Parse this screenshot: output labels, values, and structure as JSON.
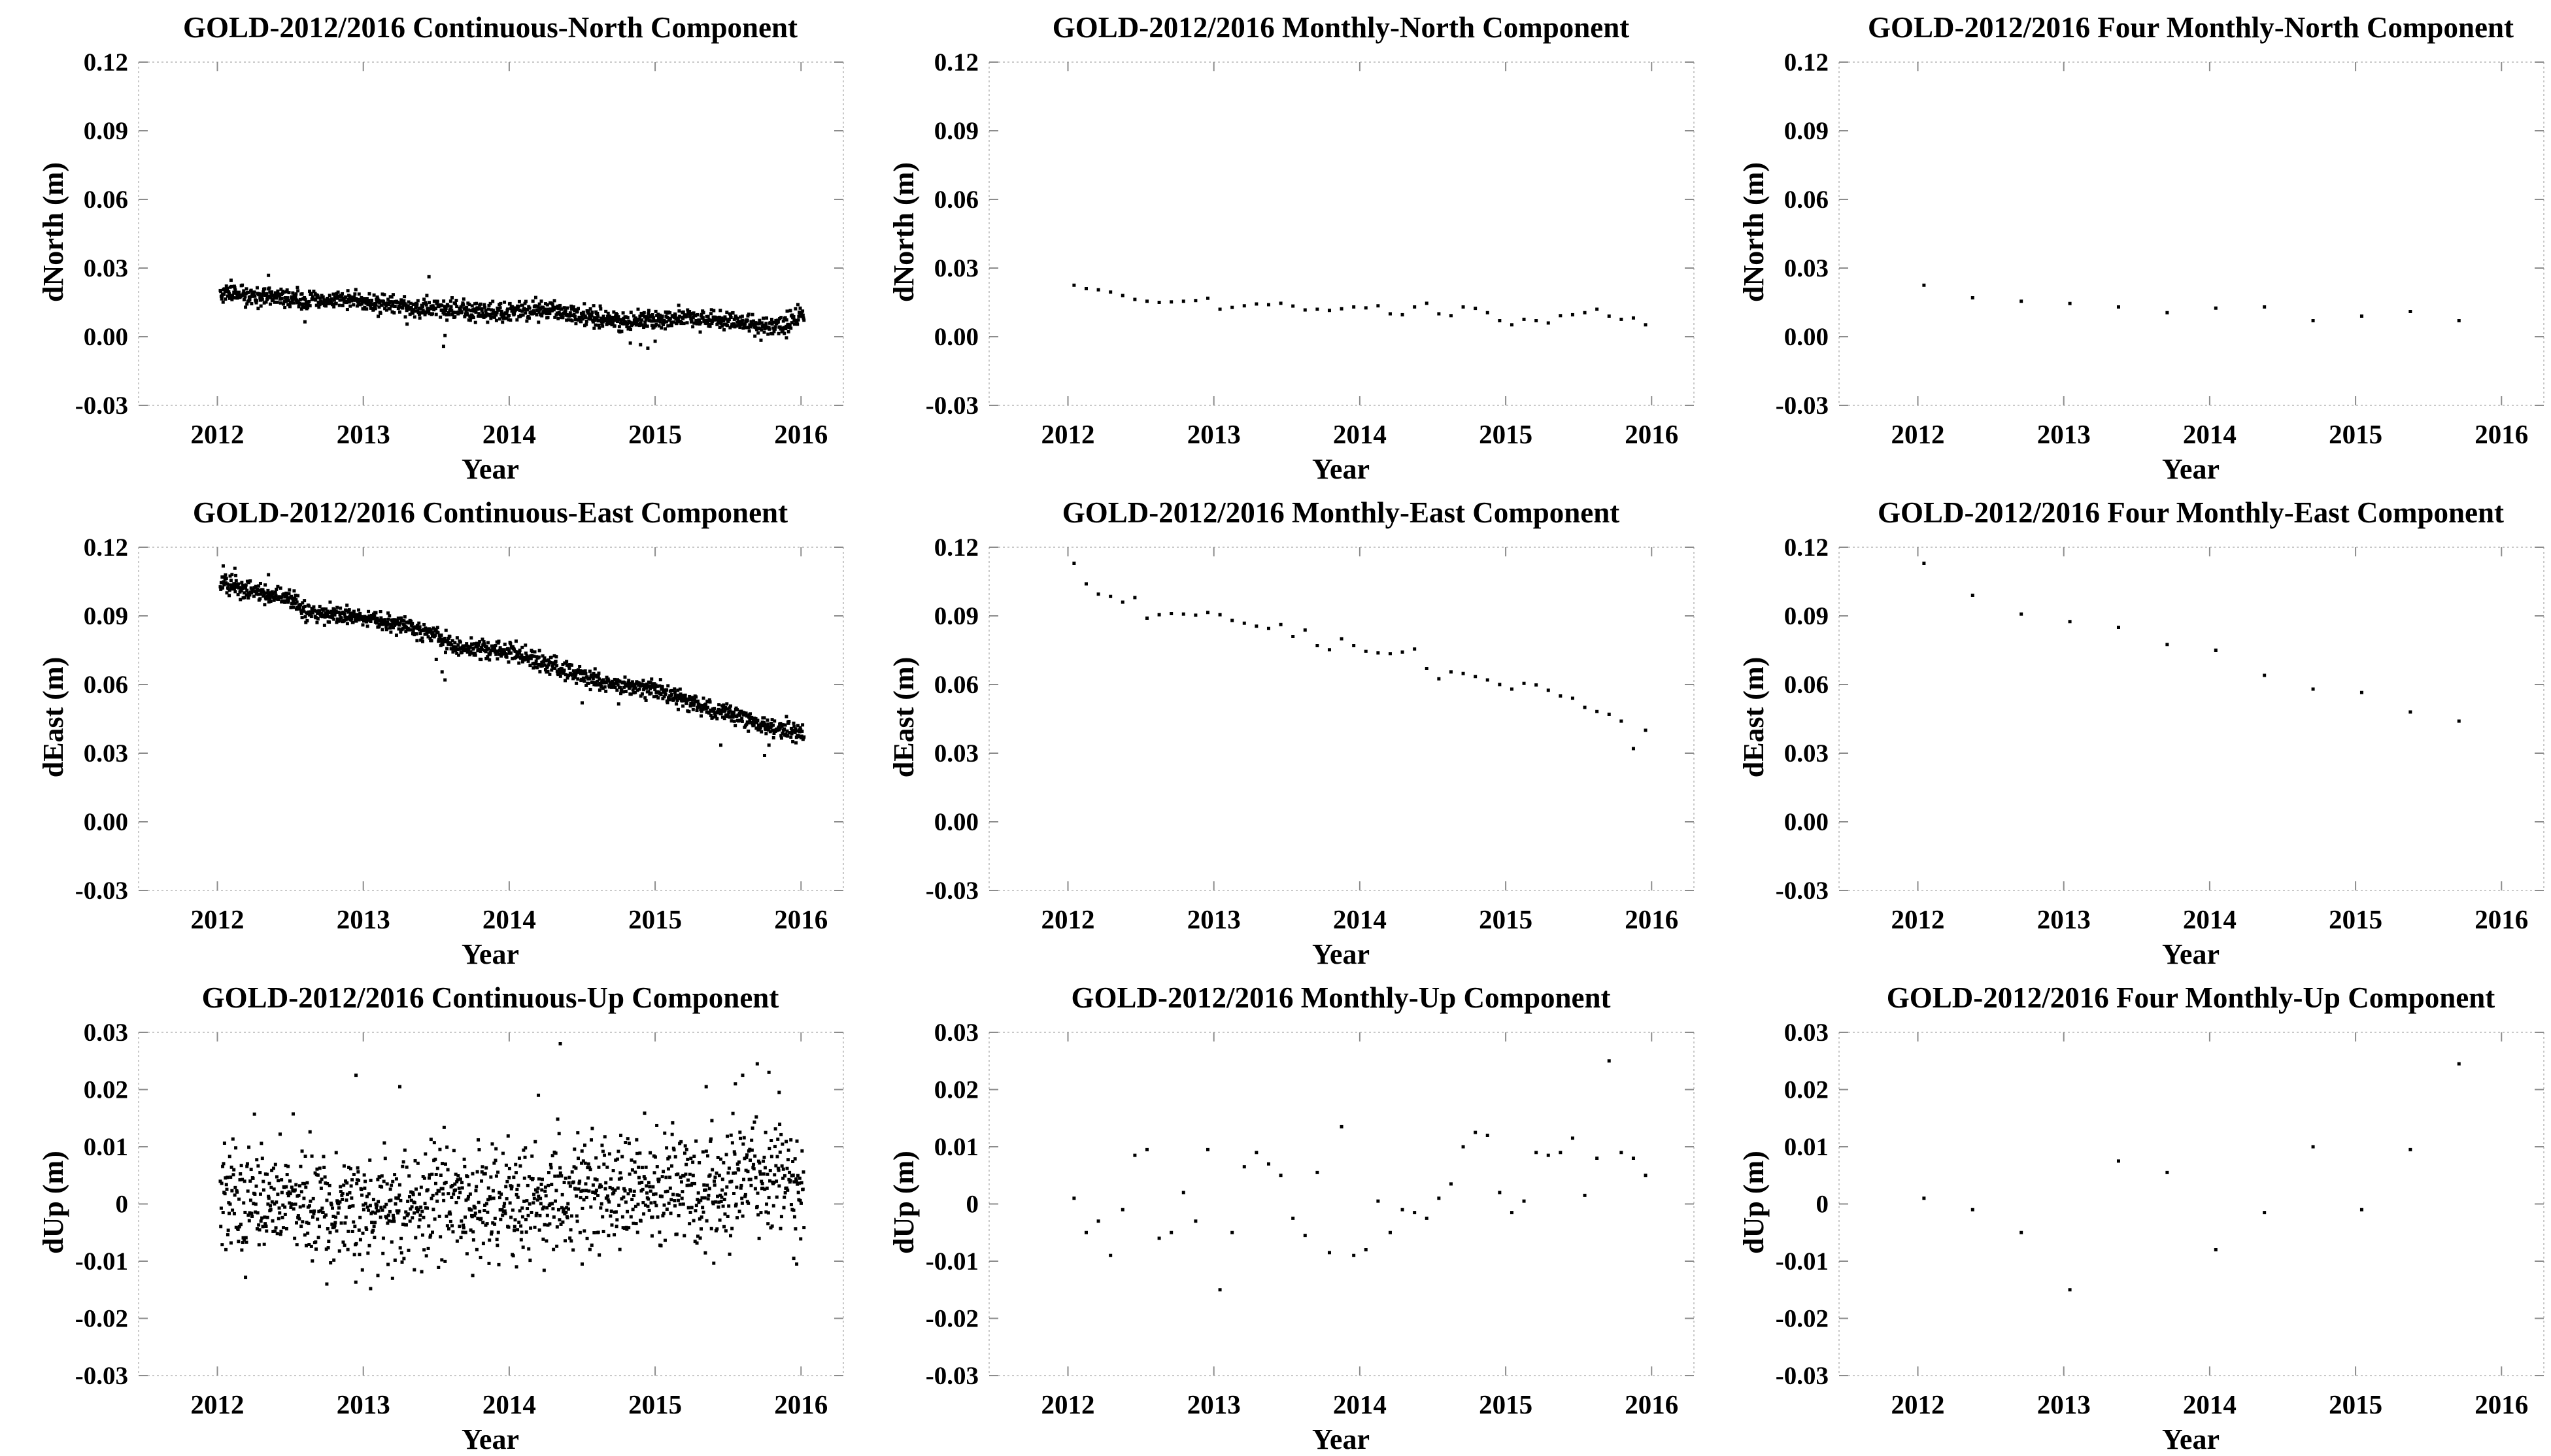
{
  "figure": {
    "station": "GOLD",
    "period": "2012/2016",
    "background_color": "#ffffff",
    "frame_color": "#c9c9c9",
    "tick_color": "#8c8c8c",
    "marker_color": "#000000",
    "text_color": "#000000"
  },
  "chart_data": [
    {
      "id": "continuous-north",
      "type": "scatter",
      "title": "GOLD-2012/2016 Continuous-North Component",
      "xlabel": "Year",
      "ylabel": "dNorth (m)",
      "xlim": [
        2011.46,
        2016.29
      ],
      "ylim": [
        -0.03,
        0.12
      ],
      "xticks": {
        "values": [
          2012,
          2013,
          2014,
          2015,
          2016
        ],
        "labels": [
          "2012",
          "2013",
          "2014",
          "2015",
          "2016"
        ]
      },
      "yticks": {
        "values": [
          0.12,
          0.09,
          0.06,
          0.03,
          0.0,
          -0.03
        ],
        "labels": [
          "0.12",
          "0.09",
          "0.06",
          "0.03",
          "0.00",
          "-0.03"
        ]
      },
      "grid": false,
      "legend": null,
      "series": {
        "kind": "dense",
        "n": 1250,
        "seed": 101,
        "x_start": 2012.02,
        "x_end": 2016.02,
        "noise_sd": 0.0021,
        "trend_anchors": [
          [
            2012.0,
            0.0198
          ],
          [
            2012.3,
            0.018
          ],
          [
            2012.6,
            0.0158
          ],
          [
            2012.95,
            0.016
          ],
          [
            2013.1,
            0.014
          ],
          [
            2013.35,
            0.0132
          ],
          [
            2013.6,
            0.0116
          ],
          [
            2013.9,
            0.0107
          ],
          [
            2014.2,
            0.0118
          ],
          [
            2014.45,
            0.0102
          ],
          [
            2014.65,
            0.0068
          ],
          [
            2015.0,
            0.0072
          ],
          [
            2015.2,
            0.0086
          ],
          [
            2015.5,
            0.0066
          ],
          [
            2015.75,
            0.0042
          ],
          [
            2015.9,
            0.006
          ],
          [
            2016.0,
            0.009
          ]
        ],
        "outliers": [
          [
            2012.35,
            0.0268
          ],
          [
            2013.45,
            0.0262
          ],
          [
            2013.55,
            -0.0042
          ],
          [
            2013.56,
            0.0005
          ],
          [
            2014.83,
            -0.0028
          ],
          [
            2014.9,
            -0.0035
          ],
          [
            2014.95,
            -0.005
          ],
          [
            2015.0,
            -0.002
          ],
          [
            2012.6,
            0.0065
          ],
          [
            2013.3,
            0.0055
          ],
          [
            2015.9,
            -0.0005
          ]
        ]
      }
    },
    {
      "id": "monthly-north",
      "type": "scatter",
      "title": "GOLD-2012/2016 Monthly-North Component",
      "xlabel": "Year",
      "ylabel": "dNorth (m)",
      "xlim": [
        2011.46,
        2016.29
      ],
      "ylim": [
        -0.03,
        0.12
      ],
      "xticks": {
        "values": [
          2012,
          2013,
          2014,
          2015,
          2016
        ],
        "labels": [
          "2012",
          "2013",
          "2014",
          "2015",
          "2016"
        ]
      },
      "yticks": {
        "values": [
          0.12,
          0.09,
          0.06,
          0.03,
          0.0,
          -0.03
        ],
        "labels": [
          "0.12",
          "0.09",
          "0.06",
          "0.03",
          "0.00",
          "-0.03"
        ]
      },
      "grid": false,
      "legend": null,
      "series": {
        "kind": "points",
        "x_start": 2012.042,
        "x_step": 0.083333,
        "values": [
          0.0225,
          0.021,
          0.0205,
          0.0195,
          0.018,
          0.0163,
          0.0155,
          0.015,
          0.0152,
          0.0155,
          0.0158,
          0.0168,
          0.012,
          0.0128,
          0.0135,
          0.0143,
          0.014,
          0.0146,
          0.0134,
          0.0117,
          0.012,
          0.0115,
          0.0122,
          0.013,
          0.0126,
          0.0135,
          0.01,
          0.0096,
          0.013,
          0.0146,
          0.01,
          0.0092,
          0.013,
          0.0124,
          0.0105,
          0.007,
          0.0052,
          0.0076,
          0.007,
          0.006,
          0.0092,
          0.0096,
          0.0105,
          0.012,
          0.009,
          0.0076,
          0.0082,
          0.0052
        ]
      }
    },
    {
      "id": "four-monthly-north",
      "type": "scatter",
      "title": "GOLD-2012/2016 Four Monthly-North Component",
      "xlabel": "Year",
      "ylabel": "dNorth (m)",
      "xlim": [
        2011.46,
        2016.29
      ],
      "ylim": [
        -0.03,
        0.12
      ],
      "xticks": {
        "values": [
          2012,
          2013,
          2014,
          2015,
          2016
        ],
        "labels": [
          "2012",
          "2013",
          "2014",
          "2015",
          "2016"
        ]
      },
      "yticks": {
        "values": [
          0.12,
          0.09,
          0.06,
          0.03,
          0.0,
          -0.03
        ],
        "labels": [
          "0.12",
          "0.09",
          "0.06",
          "0.03",
          "0.00",
          "-0.03"
        ]
      },
      "grid": false,
      "legend": null,
      "series": {
        "kind": "points",
        "x_start": 2012.042,
        "x_step": 0.333333,
        "values": [
          0.0225,
          0.017,
          0.0155,
          0.0145,
          0.013,
          0.0105,
          0.0125,
          0.013,
          0.007,
          0.009,
          0.011,
          0.007
        ]
      }
    },
    {
      "id": "continuous-east",
      "type": "scatter",
      "title": "GOLD-2012/2016 Continuous-East Component",
      "xlabel": "Year",
      "ylabel": "dEast (m)",
      "xlim": [
        2011.46,
        2016.29
      ],
      "ylim": [
        -0.03,
        0.12
      ],
      "xticks": {
        "values": [
          2012,
          2013,
          2014,
          2015,
          2016
        ],
        "labels": [
          "2012",
          "2013",
          "2014",
          "2015",
          "2016"
        ]
      },
      "yticks": {
        "values": [
          0.12,
          0.09,
          0.06,
          0.03,
          0.0,
          -0.03
        ],
        "labels": [
          "0.12",
          "0.09",
          "0.06",
          "0.03",
          "0.00",
          "-0.03"
        ]
      },
      "grid": false,
      "legend": null,
      "series": {
        "kind": "dense",
        "n": 1250,
        "seed": 202,
        "x_start": 2012.02,
        "x_end": 2016.02,
        "noise_sd": 0.002,
        "trend_anchors": [
          [
            2012.0,
            0.1045
          ],
          [
            2012.3,
            0.1
          ],
          [
            2012.5,
            0.0975
          ],
          [
            2012.62,
            0.0915
          ],
          [
            2013.0,
            0.09
          ],
          [
            2013.2,
            0.0872
          ],
          [
            2013.5,
            0.082
          ],
          [
            2013.62,
            0.0768
          ],
          [
            2014.0,
            0.0745
          ],
          [
            2014.3,
            0.068
          ],
          [
            2014.55,
            0.0625
          ],
          [
            2014.75,
            0.0598
          ],
          [
            2015.0,
            0.0578
          ],
          [
            2015.3,
            0.051
          ],
          [
            2015.6,
            0.0455
          ],
          [
            2015.85,
            0.0398
          ],
          [
            2016.0,
            0.0388
          ]
        ],
        "outliers": [
          [
            2012.04,
            0.1118
          ],
          [
            2012.12,
            0.1108
          ],
          [
            2012.35,
            0.108
          ],
          [
            2013.5,
            0.071
          ],
          [
            2013.54,
            0.0655
          ],
          [
            2013.56,
            0.062
          ],
          [
            2014.5,
            0.052
          ],
          [
            2014.75,
            0.0515
          ],
          [
            2015.45,
            0.0335
          ],
          [
            2015.75,
            0.029
          ],
          [
            2015.78,
            0.0335
          ],
          [
            2015.9,
            0.046
          ]
        ]
      }
    },
    {
      "id": "monthly-east",
      "type": "scatter",
      "title": "GOLD-2012/2016 Monthly-East Component",
      "xlabel": "Year",
      "ylabel": "dEast (m)",
      "xlim": [
        2011.46,
        2016.29
      ],
      "ylim": [
        -0.03,
        0.12
      ],
      "xticks": {
        "values": [
          2012,
          2013,
          2014,
          2015,
          2016
        ],
        "labels": [
          "2012",
          "2013",
          "2014",
          "2015",
          "2016"
        ]
      },
      "yticks": {
        "values": [
          0.12,
          0.09,
          0.06,
          0.03,
          0.0,
          -0.03
        ],
        "labels": [
          "0.12",
          "0.09",
          "0.06",
          "0.03",
          "0.00",
          "-0.03"
        ]
      },
      "grid": false,
      "legend": null,
      "series": {
        "kind": "points",
        "x_start": 2012.042,
        "x_step": 0.083333,
        "values": [
          0.113,
          0.104,
          0.0995,
          0.0985,
          0.096,
          0.098,
          0.089,
          0.0905,
          0.091,
          0.0908,
          0.0903,
          0.0915,
          0.0905,
          0.088,
          0.0868,
          0.0855,
          0.0845,
          0.0862,
          0.081,
          0.0838,
          0.077,
          0.0752,
          0.08,
          0.077,
          0.0745,
          0.0738,
          0.0735,
          0.0742,
          0.0755,
          0.067,
          0.0625,
          0.0655,
          0.0648,
          0.0635,
          0.062,
          0.06,
          0.058,
          0.0605,
          0.0598,
          0.0575,
          0.055,
          0.054,
          0.05,
          0.0482,
          0.047,
          0.044,
          0.032,
          0.04
        ]
      }
    },
    {
      "id": "four-monthly-east",
      "type": "scatter",
      "title": "GOLD-2012/2016 Four Monthly-East Component",
      "xlabel": "Year",
      "ylabel": "dEast (m)",
      "xlim": [
        2011.46,
        2016.29
      ],
      "ylim": [
        -0.03,
        0.12
      ],
      "xticks": {
        "values": [
          2012,
          2013,
          2014,
          2015,
          2016
        ],
        "labels": [
          "2012",
          "2013",
          "2014",
          "2015",
          "2016"
        ]
      },
      "yticks": {
        "values": [
          0.12,
          0.09,
          0.06,
          0.03,
          0.0,
          -0.03
        ],
        "labels": [
          "0.12",
          "0.09",
          "0.06",
          "0.03",
          "0.00",
          "-0.03"
        ]
      },
      "grid": false,
      "legend": null,
      "series": {
        "kind": "points",
        "x_start": 2012.042,
        "x_step": 0.333333,
        "values": [
          0.113,
          0.099,
          0.0908,
          0.0875,
          0.085,
          0.0775,
          0.075,
          0.064,
          0.058,
          0.0565,
          0.048,
          0.044
        ]
      }
    },
    {
      "id": "continuous-up",
      "type": "scatter",
      "title": "GOLD-2012/2016 Continuous-Up Component",
      "xlabel": "Year",
      "ylabel": "dUp (m)",
      "xlim": [
        2011.46,
        2016.29
      ],
      "ylim": [
        -0.03,
        0.03
      ],
      "xticks": {
        "values": [
          2012,
          2013,
          2014,
          2015,
          2016
        ],
        "labels": [
          "2012",
          "2013",
          "2014",
          "2015",
          "2016"
        ]
      },
      "yticks": {
        "values": [
          0.03,
          0.02,
          0.01,
          0.0,
          -0.01,
          -0.02,
          -0.03
        ],
        "labels": [
          "0.03",
          "0.02",
          "0.01",
          "0",
          "-0.01",
          "-0.02",
          "-0.03"
        ]
      },
      "grid": false,
      "legend": null,
      "series": {
        "kind": "dense",
        "n": 1250,
        "seed": 303,
        "x_start": 2012.02,
        "x_end": 2016.02,
        "noise_sd": 0.0046,
        "trend_anchors": [
          [
            2012.0,
            0.0
          ],
          [
            2012.5,
            0.0005
          ],
          [
            2013.0,
            -0.0005
          ],
          [
            2013.5,
            0.0
          ],
          [
            2014.0,
            0.0005
          ],
          [
            2014.5,
            0.0015
          ],
          [
            2014.9,
            0.0025
          ],
          [
            2015.3,
            0.002
          ],
          [
            2015.6,
            0.004
          ],
          [
            2015.85,
            0.006
          ],
          [
            2016.0,
            0.003
          ]
        ],
        "outliers": [
          [
            2012.95,
            0.0225
          ],
          [
            2013.25,
            0.0205
          ],
          [
            2014.2,
            0.019
          ],
          [
            2014.35,
            0.028
          ],
          [
            2015.35,
            0.0205
          ],
          [
            2015.55,
            0.021
          ],
          [
            2015.6,
            0.0225
          ],
          [
            2015.7,
            0.0245
          ],
          [
            2015.78,
            0.023
          ],
          [
            2015.85,
            0.0195
          ],
          [
            2012.75,
            -0.014
          ],
          [
            2013.05,
            -0.0148
          ],
          [
            2013.1,
            -0.0125
          ],
          [
            2013.2,
            -0.013
          ],
          [
            2013.35,
            -0.0115
          ],
          [
            2013.75,
            -0.0125
          ],
          [
            2014.05,
            -0.011
          ],
          [
            2014.5,
            -0.0105
          ],
          [
            2015.95,
            -0.0095
          ],
          [
            2015.97,
            -0.0105
          ]
        ]
      }
    },
    {
      "id": "monthly-up",
      "type": "scatter",
      "title": "GOLD-2012/2016 Monthly-Up Component",
      "xlabel": "Year",
      "ylabel": "dUp (m)",
      "xlim": [
        2011.46,
        2016.29
      ],
      "ylim": [
        -0.03,
        0.03
      ],
      "xticks": {
        "values": [
          2012,
          2013,
          2014,
          2015,
          2016
        ],
        "labels": [
          "2012",
          "2013",
          "2014",
          "2015",
          "2016"
        ]
      },
      "yticks": {
        "values": [
          0.03,
          0.02,
          0.01,
          0.0,
          -0.01,
          -0.02,
          -0.03
        ],
        "labels": [
          "0.03",
          "0.02",
          "0.01",
          "0",
          "-0.01",
          "-0.02",
          "-0.03"
        ]
      },
      "grid": false,
      "legend": null,
      "series": {
        "kind": "points",
        "x_start": 2012.042,
        "x_step": 0.083333,
        "values": [
          0.001,
          -0.005,
          -0.003,
          -0.009,
          -0.001,
          0.0085,
          0.0095,
          -0.006,
          -0.005,
          0.002,
          -0.003,
          0.0095,
          -0.015,
          -0.005,
          0.0065,
          0.009,
          0.007,
          0.005,
          -0.0025,
          -0.0055,
          0.0055,
          -0.0085,
          0.0135,
          -0.009,
          -0.008,
          0.0005,
          -0.005,
          -0.001,
          -0.0015,
          -0.0025,
          0.001,
          0.0035,
          0.01,
          0.0125,
          0.012,
          0.002,
          -0.0015,
          0.0005,
          0.009,
          0.0085,
          0.009,
          0.0115,
          0.0015,
          0.008,
          0.025,
          0.009,
          0.008,
          0.005
        ]
      }
    },
    {
      "id": "four-monthly-up",
      "type": "scatter",
      "title": "GOLD-2012/2016 Four Monthly-Up Component",
      "xlabel": "Year",
      "ylabel": "dUp (m)",
      "xlim": [
        2011.46,
        2016.29
      ],
      "ylim": [
        -0.03,
        0.03
      ],
      "xticks": {
        "values": [
          2012,
          2013,
          2014,
          2015,
          2016
        ],
        "labels": [
          "2012",
          "2013",
          "2014",
          "2015",
          "2016"
        ]
      },
      "yticks": {
        "values": [
          0.03,
          0.02,
          0.01,
          0.0,
          -0.01,
          -0.02,
          -0.03
        ],
        "labels": [
          "0.03",
          "0.02",
          "0.01",
          "0",
          "-0.01",
          "-0.02",
          "-0.03"
        ]
      },
      "grid": false,
      "legend": null,
      "series": {
        "kind": "points",
        "x_start": 2012.042,
        "x_step": 0.333333,
        "values": [
          0.001,
          -0.001,
          -0.005,
          -0.015,
          0.0075,
          0.0055,
          -0.008,
          -0.0015,
          0.01,
          -0.001,
          0.0095,
          0.0245
        ]
      }
    }
  ]
}
